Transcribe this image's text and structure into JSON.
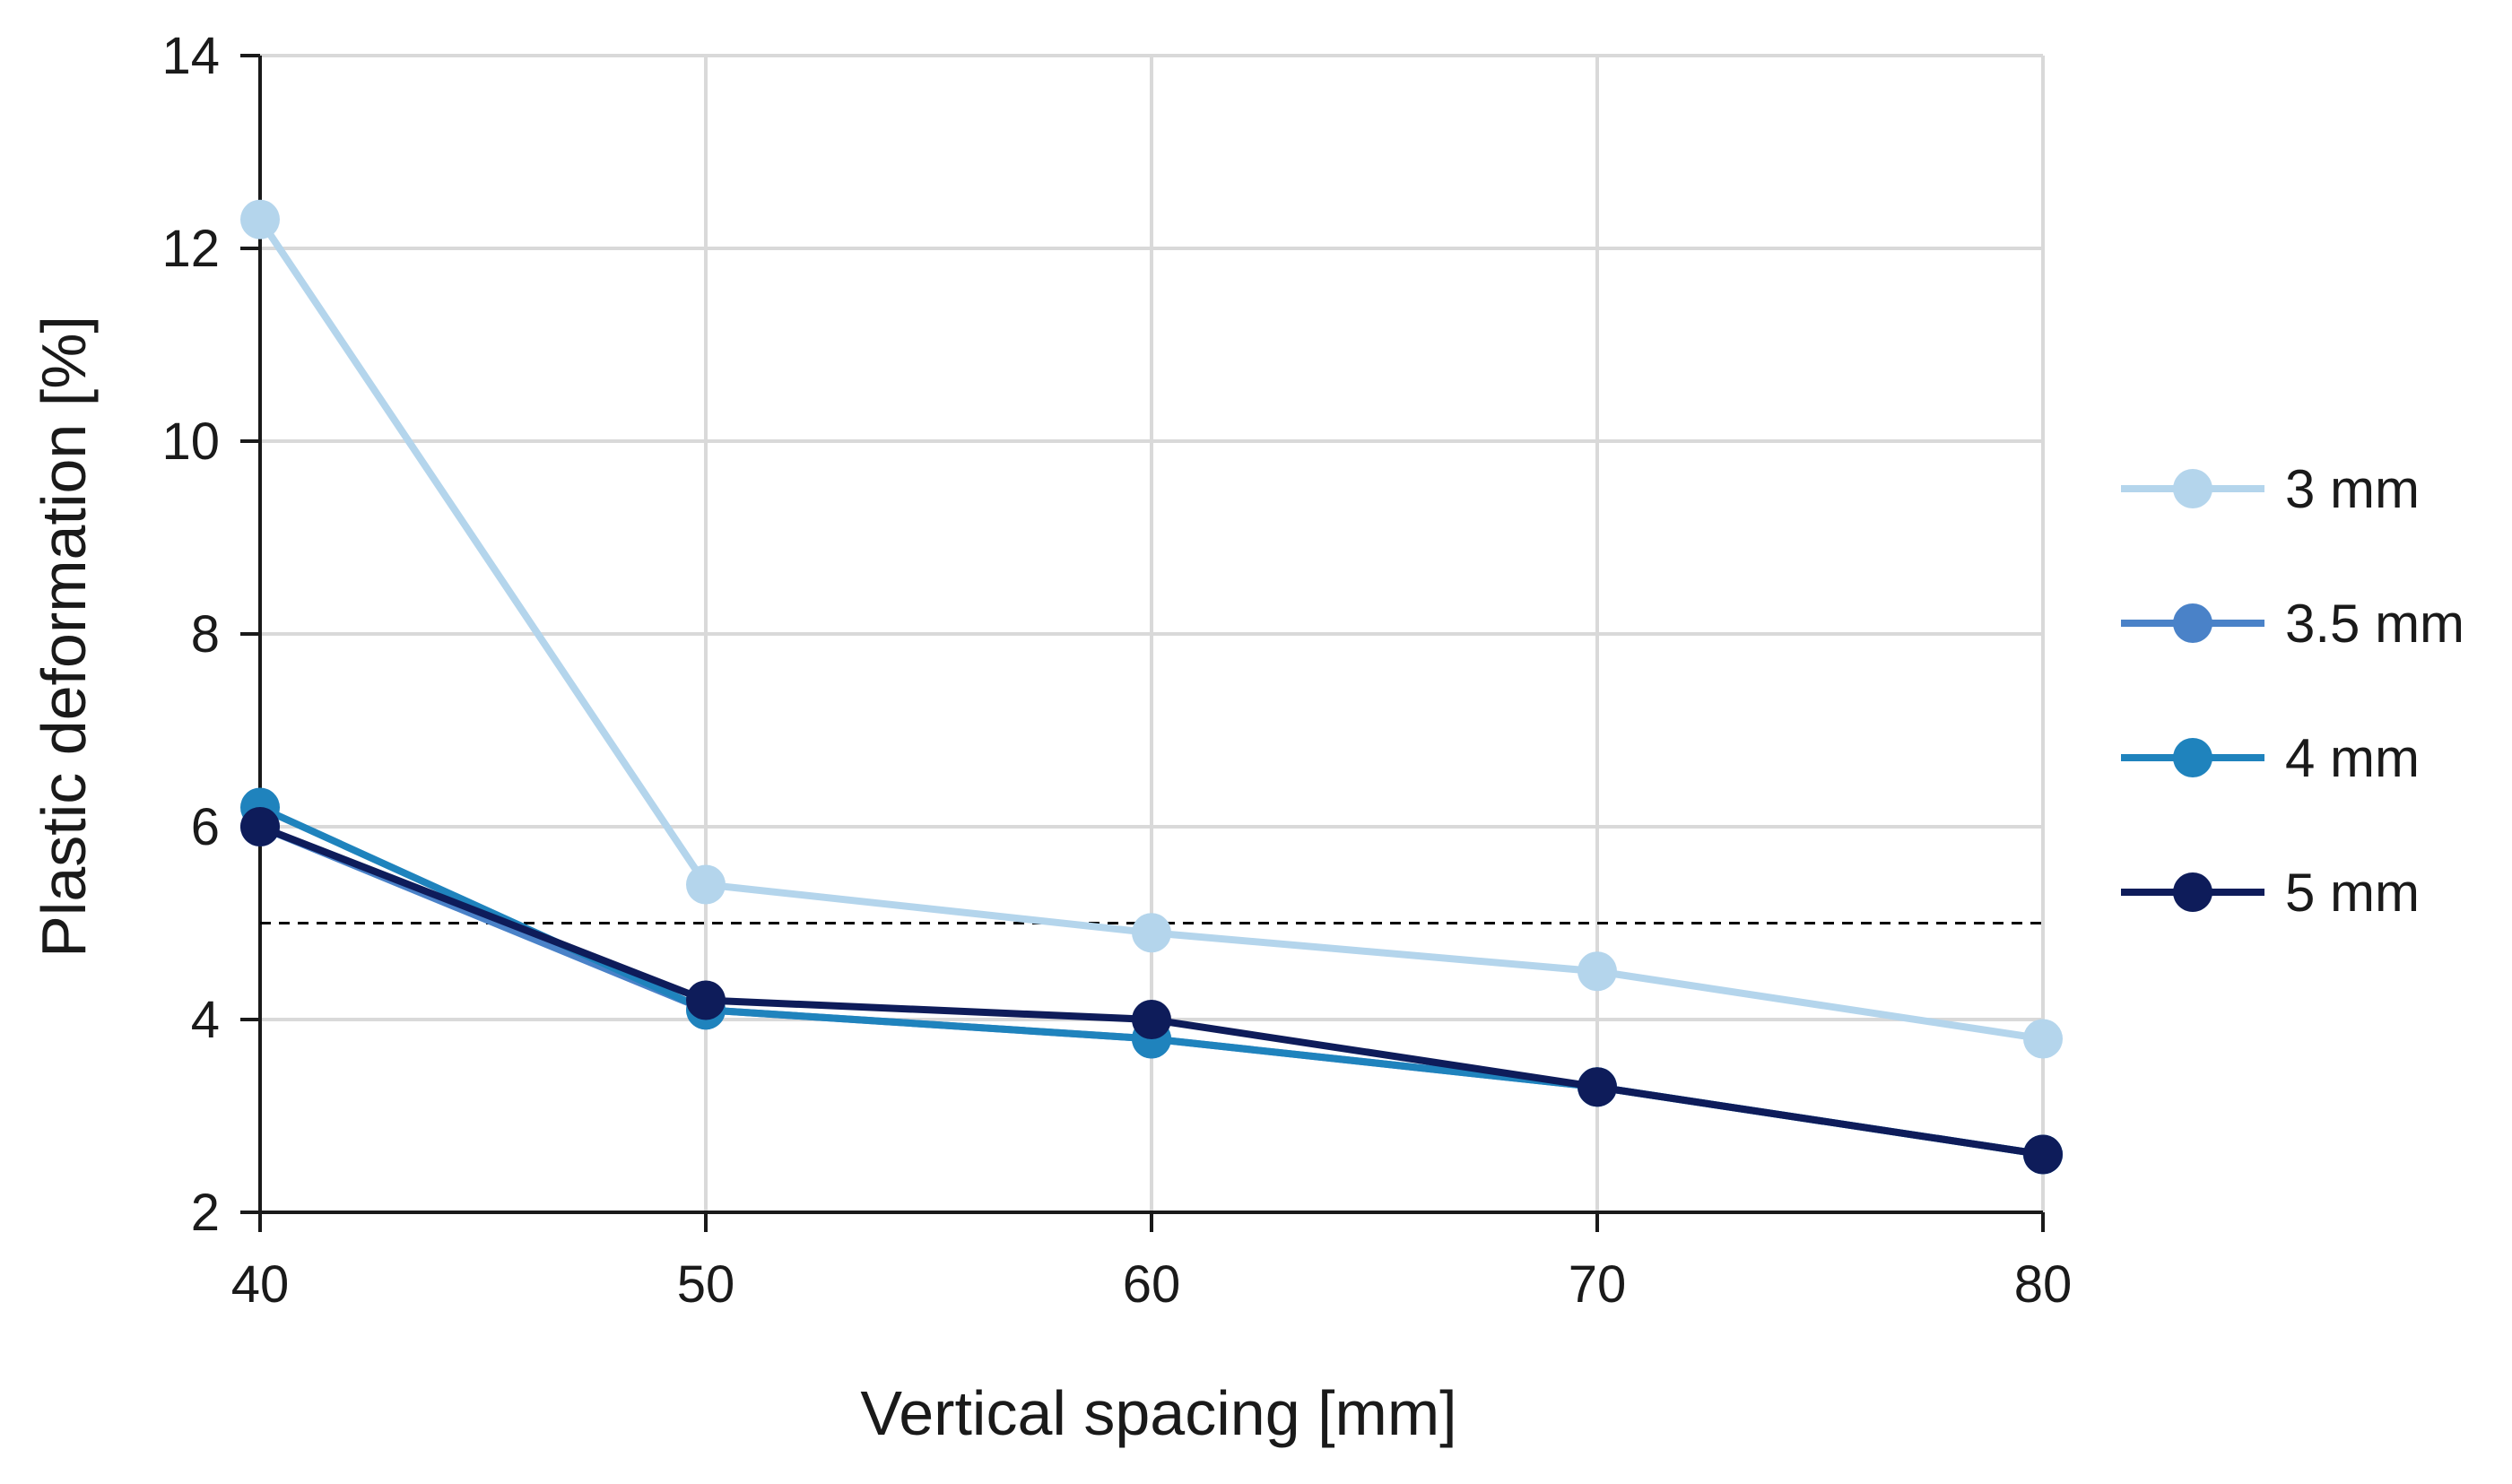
{
  "chart_data": {
    "type": "line",
    "title": "",
    "xlabel": "Vertical spacing [mm]",
    "ylabel": "Plastic deformation [%]",
    "x": [
      40,
      50,
      60,
      70,
      80
    ],
    "xlim": [
      40,
      80
    ],
    "ylim": [
      2,
      14
    ],
    "xticks": [
      40,
      50,
      60,
      70,
      80
    ],
    "yticks": [
      2,
      4,
      6,
      8,
      10,
      12,
      14
    ],
    "grid": true,
    "legend_position": "right",
    "reference_line": {
      "y": 5,
      "style": "dashed",
      "color": "#000000"
    },
    "series": [
      {
        "name": "3 mm",
        "color": "#b4d5ec",
        "values": [
          12.3,
          5.4,
          4.9,
          4.5,
          3.8
        ]
      },
      {
        "name": "3.5 mm",
        "color": "#4a82c8",
        "values": [
          6.0,
          4.1,
          3.8,
          3.3,
          2.6
        ]
      },
      {
        "name": "4 mm",
        "color": "#1f83bd",
        "values": [
          6.2,
          4.1,
          3.8,
          3.3,
          2.6
        ]
      },
      {
        "name": "5 mm",
        "color": "#0e1c5a",
        "values": [
          6.0,
          4.2,
          4.0,
          3.3,
          2.6
        ]
      }
    ]
  }
}
